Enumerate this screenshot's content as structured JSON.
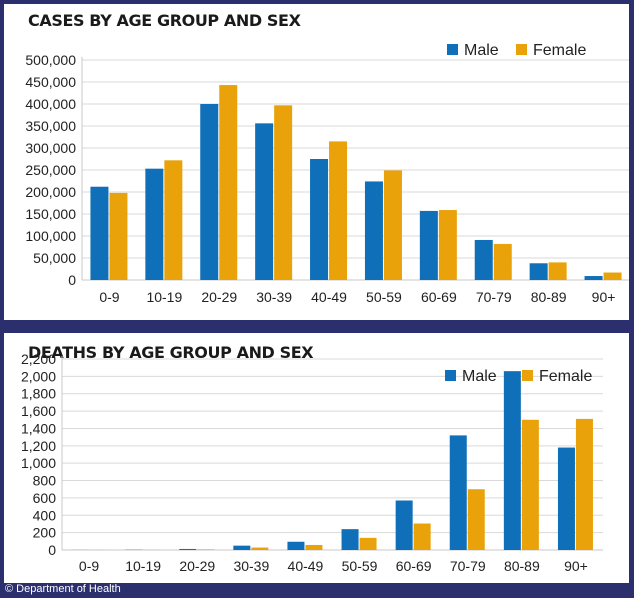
{
  "colors": {
    "male": "#0f6fb8",
    "female": "#e9a20a",
    "grid": "#d9d9d9"
  },
  "credit": "© Department of Health",
  "chart_data": [
    {
      "type": "bar",
      "title": "CASES BY AGE GROUP AND SEX",
      "categories": [
        "0-9",
        "10-19",
        "20-29",
        "30-39",
        "40-49",
        "50-59",
        "60-69",
        "70-79",
        "80-89",
        "90+"
      ],
      "series": [
        {
          "name": "Male",
          "values": [
            212000,
            253000,
            400000,
            356000,
            275000,
            224000,
            157000,
            91000,
            38000,
            9000
          ]
        },
        {
          "name": "Female",
          "values": [
            198000,
            272000,
            443000,
            397000,
            315000,
            249000,
            159000,
            82000,
            40000,
            17000
          ]
        }
      ],
      "ylim": [
        0,
        500000
      ],
      "yticks": [
        0,
        50000,
        100000,
        150000,
        200000,
        250000,
        300000,
        350000,
        400000,
        450000,
        500000
      ],
      "ytick_labels": [
        "0",
        "50,000",
        "100,000",
        "150,000",
        "200,000",
        "250,000",
        "300,000",
        "350,000",
        "400,000",
        "450,000",
        "500,000"
      ],
      "grid": true,
      "legend": "top-right"
    },
    {
      "type": "bar",
      "title": "DEATHS BY AGE GROUP AND SEX",
      "categories": [
        "0-9",
        "10-19",
        "20-29",
        "30-39",
        "40-49",
        "50-59",
        "60-69",
        "70-79",
        "80-89",
        "90+"
      ],
      "series": [
        {
          "name": "Male",
          "values": [
            1,
            3,
            12,
            50,
            95,
            240,
            570,
            1320,
            2060,
            1180
          ]
        },
        {
          "name": "Female",
          "values": [
            1,
            2,
            7,
            28,
            58,
            140,
            305,
            700,
            1500,
            1510
          ]
        }
      ],
      "ylim": [
        0,
        2200
      ],
      "yticks": [
        0,
        200,
        400,
        600,
        800,
        1000,
        1200,
        1400,
        1600,
        1800,
        2000,
        2200
      ],
      "ytick_labels": [
        "0",
        "200",
        "400",
        "600",
        "800",
        "1,000",
        "1,200",
        "1,400",
        "1,600",
        "1,800",
        "2,000",
        "2,200"
      ],
      "grid": true,
      "legend": "top-right"
    }
  ]
}
